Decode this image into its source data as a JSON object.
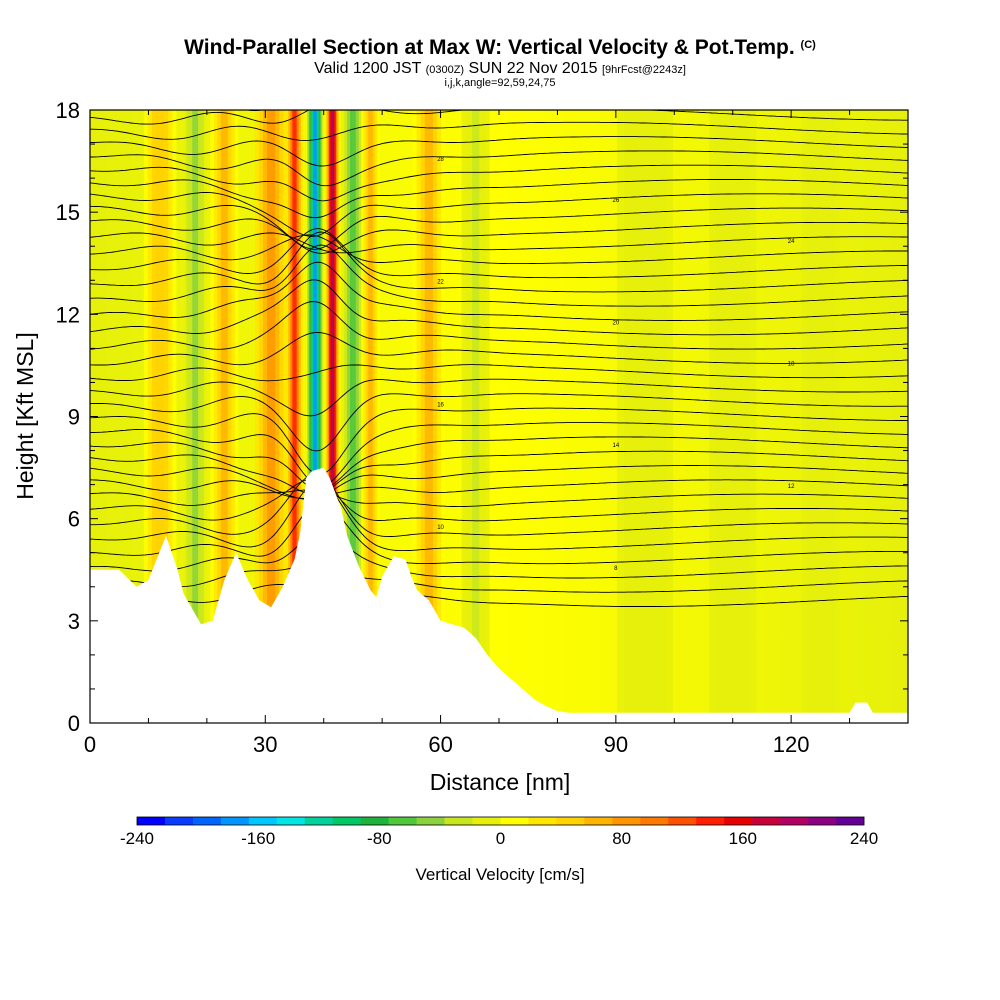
{
  "title": {
    "main": "Wind-Parallel Section at Max W: Vertical Velocity & Pot.Temp.",
    "main_suffix": "(C)",
    "valid_prefix": "Valid 1200 JST",
    "valid_utc": "(0300Z)",
    "valid_date": "SUN 22 Nov 2015",
    "forecast": "[9hrFcst@2243z]",
    "indices": "i,j,k,angle=92,59,24,75"
  },
  "chart_data": {
    "type": "heatmap",
    "xlabel": "Distance [nm]",
    "ylabel": "Height [Kft MSL]",
    "xlim": [
      0,
      140
    ],
    "ylim": [
      0,
      18
    ],
    "xticks": [
      "0",
      "30",
      "60",
      "90",
      "120"
    ],
    "yticks": [
      "0",
      "3",
      "6",
      "9",
      "12",
      "15",
      "18"
    ],
    "colorbar": {
      "title": "Vertical Velocity [cm/s]",
      "labels": [
        "-240",
        "-160",
        "-80",
        "0",
        "80",
        "160",
        "240"
      ],
      "range": [
        -240,
        240
      ],
      "colors": [
        "#0000ff",
        "#0a3cff",
        "#0064ff",
        "#0096ff",
        "#00c8ff",
        "#00e6e6",
        "#00d29b",
        "#00c864",
        "#1eb43c",
        "#50c83c",
        "#8cd23c",
        "#c8e61e",
        "#e6f00a",
        "#ffff00",
        "#ffe600",
        "#ffd200",
        "#ffb400",
        "#ff9600",
        "#ff7800",
        "#ff5000",
        "#ff1e00",
        "#e60000",
        "#c8003c",
        "#b40064",
        "#8c0082",
        "#640096"
      ]
    },
    "terrain_kft": [
      [
        0,
        4.5
      ],
      [
        5,
        4.5
      ],
      [
        8,
        4.0
      ],
      [
        10,
        4.2
      ],
      [
        13,
        5.5
      ],
      [
        15,
        4.5
      ],
      [
        16,
        3.8
      ],
      [
        18,
        3.2
      ],
      [
        19,
        2.9
      ],
      [
        21,
        3.0
      ],
      [
        23,
        4.2
      ],
      [
        25,
        5.0
      ],
      [
        27,
        4.2
      ],
      [
        29,
        3.6
      ],
      [
        31,
        3.4
      ],
      [
        33,
        4.0
      ],
      [
        35,
        4.8
      ],
      [
        36,
        5.6
      ],
      [
        37,
        7.2
      ],
      [
        38,
        7.4
      ],
      [
        40,
        7.5
      ],
      [
        41,
        7.2
      ],
      [
        43,
        6.3
      ],
      [
        44,
        5.5
      ],
      [
        46,
        4.6
      ],
      [
        48,
        3.9
      ],
      [
        49,
        3.7
      ],
      [
        50,
        4.3
      ],
      [
        52,
        4.9
      ],
      [
        54,
        4.8
      ],
      [
        55,
        4.3
      ],
      [
        56,
        3.9
      ],
      [
        58,
        3.6
      ],
      [
        60,
        3.0
      ],
      [
        62,
        2.9
      ],
      [
        64,
        2.8
      ],
      [
        66,
        2.5
      ],
      [
        68,
        2.0
      ],
      [
        70,
        1.6
      ],
      [
        72,
        1.3
      ],
      [
        74,
        1.0
      ],
      [
        76,
        0.7
      ],
      [
        78,
        0.5
      ],
      [
        80,
        0.35
      ],
      [
        82,
        0.3
      ],
      [
        130,
        0.3
      ],
      [
        131,
        0.6
      ],
      [
        133,
        0.6
      ],
      [
        134,
        0.3
      ],
      [
        140,
        0.3
      ]
    ],
    "updraft_columns": [
      {
        "x": 12,
        "w": 3.5,
        "value": 50
      },
      {
        "x": 18,
        "w": 2.5,
        "value": -40
      },
      {
        "x": 23,
        "w": 3.0,
        "value": 70
      },
      {
        "x": 31,
        "w": 3.5,
        "value": 90
      },
      {
        "x": 35,
        "w": 1.8,
        "value": 130
      },
      {
        "x": 38.5,
        "w": 1.6,
        "value": -170
      },
      {
        "x": 41.5,
        "w": 1.4,
        "value": 200
      },
      {
        "x": 45,
        "w": 2.5,
        "value": -70
      },
      {
        "x": 48,
        "w": 2.0,
        "value": 60
      },
      {
        "x": 58,
        "w": 3.5,
        "value": 60
      },
      {
        "x": 66,
        "w": 3.0,
        "value": -20
      },
      {
        "x": 95,
        "w": 6,
        "value": -15
      },
      {
        "x": 110,
        "w": 5,
        "value": -15
      },
      {
        "x": 125,
        "w": 4,
        "value": -10
      }
    ],
    "isentrope_count": 38,
    "isentrope_labels": [
      "28",
      "26",
      "24",
      "22",
      "20",
      "18",
      "16",
      "14",
      "12",
      "10",
      "8"
    ]
  }
}
